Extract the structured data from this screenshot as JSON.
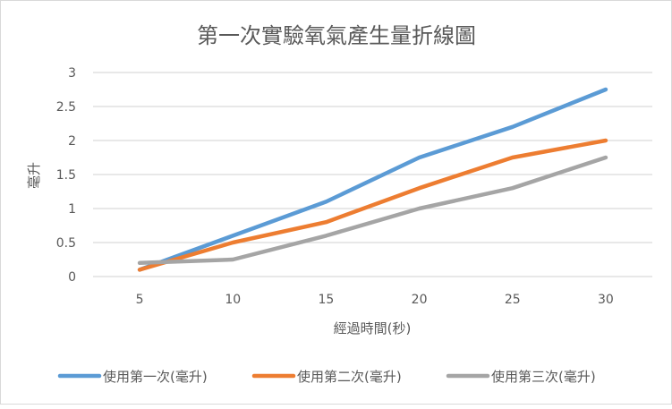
{
  "chart_data": {
    "type": "line",
    "title": "第一次實驗氧氣產生量折線圖",
    "xlabel": "經過時間(秒)",
    "ylabel": "毫升",
    "categories": [
      "5",
      "10",
      "15",
      "20",
      "25",
      "30"
    ],
    "ylim": [
      0,
      3
    ],
    "yticks": [
      "0",
      "0.5",
      "1",
      "1.5",
      "2",
      "2.5",
      "3"
    ],
    "grid": true,
    "legend": "bottom",
    "series": [
      {
        "name": "使用第一次(毫升)",
        "color": "#5b9bd5",
        "values": [
          0.1,
          0.6,
          1.1,
          1.75,
          2.2,
          2.75
        ]
      },
      {
        "name": "使用第二次(毫升)",
        "color": "#ed7d31",
        "values": [
          0.1,
          0.5,
          0.8,
          1.3,
          1.75,
          2.0
        ]
      },
      {
        "name": "使用第三次(毫升)",
        "color": "#a5a5a5",
        "values": [
          0.2,
          0.25,
          0.6,
          1.0,
          1.3,
          1.75
        ]
      }
    ]
  }
}
